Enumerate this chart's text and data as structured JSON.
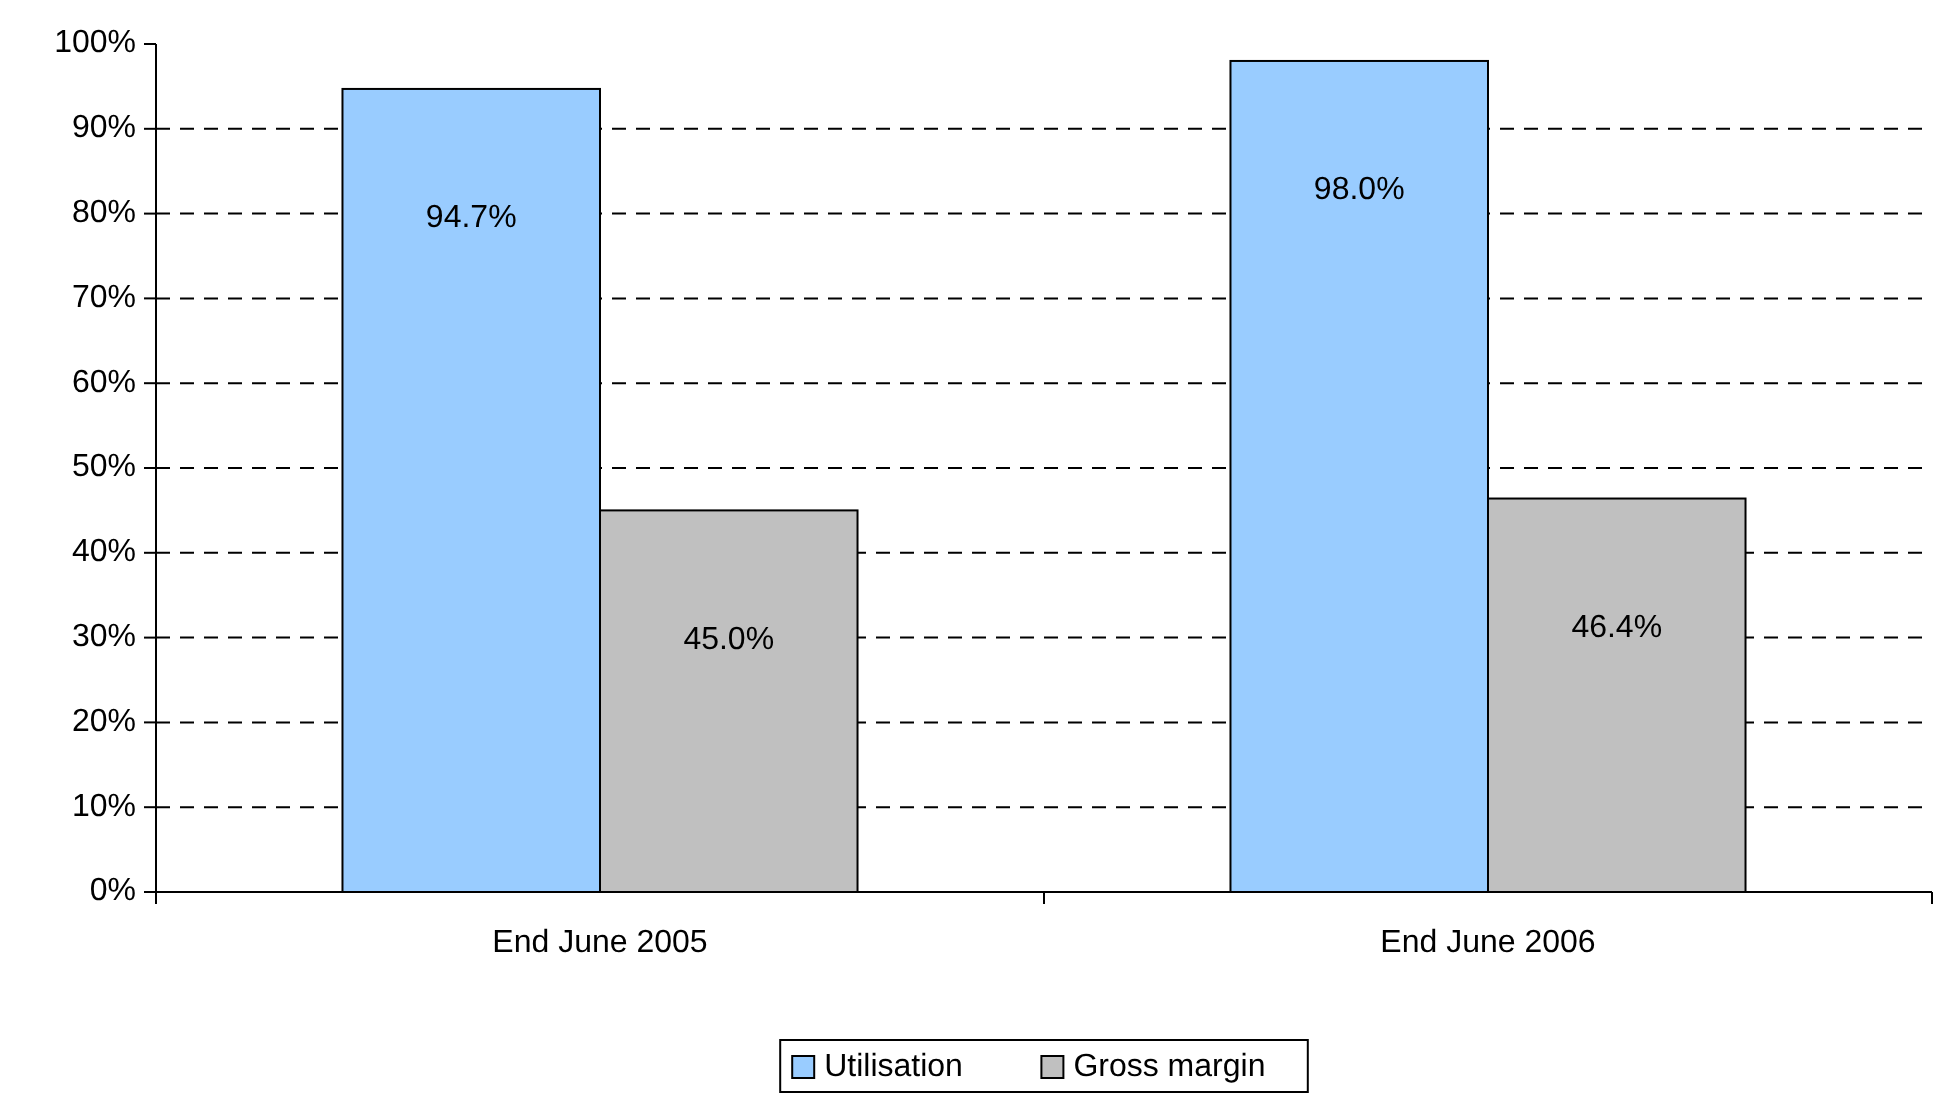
{
  "chart_data": {
    "type": "bar",
    "categories": [
      "End June 2005",
      "End June 2006"
    ],
    "series": [
      {
        "name": "Utilisation",
        "color": "#99ccff",
        "values": [
          94.7,
          98.0
        ],
        "value_labels": [
          "94.7%",
          "98.0%"
        ]
      },
      {
        "name": "Gross margin",
        "color": "#c0c0c0",
        "values": [
          45.0,
          46.4
        ],
        "value_labels": [
          "45.0%",
          "46.4%"
        ]
      }
    ],
    "ylim": [
      0,
      100
    ],
    "yticks": [
      {
        "value": 0,
        "label": "0%"
      },
      {
        "value": 10,
        "label": "10%"
      },
      {
        "value": 20,
        "label": "20%"
      },
      {
        "value": 30,
        "label": "30%"
      },
      {
        "value": 40,
        "label": "40%"
      },
      {
        "value": 50,
        "label": "50%"
      },
      {
        "value": 60,
        "label": "60%"
      },
      {
        "value": 70,
        "label": "70%"
      },
      {
        "value": 80,
        "label": "80%"
      },
      {
        "value": 90,
        "label": "90%"
      },
      {
        "value": 100,
        "label": "100%"
      }
    ],
    "grid": "y",
    "legend": "bottom"
  }
}
